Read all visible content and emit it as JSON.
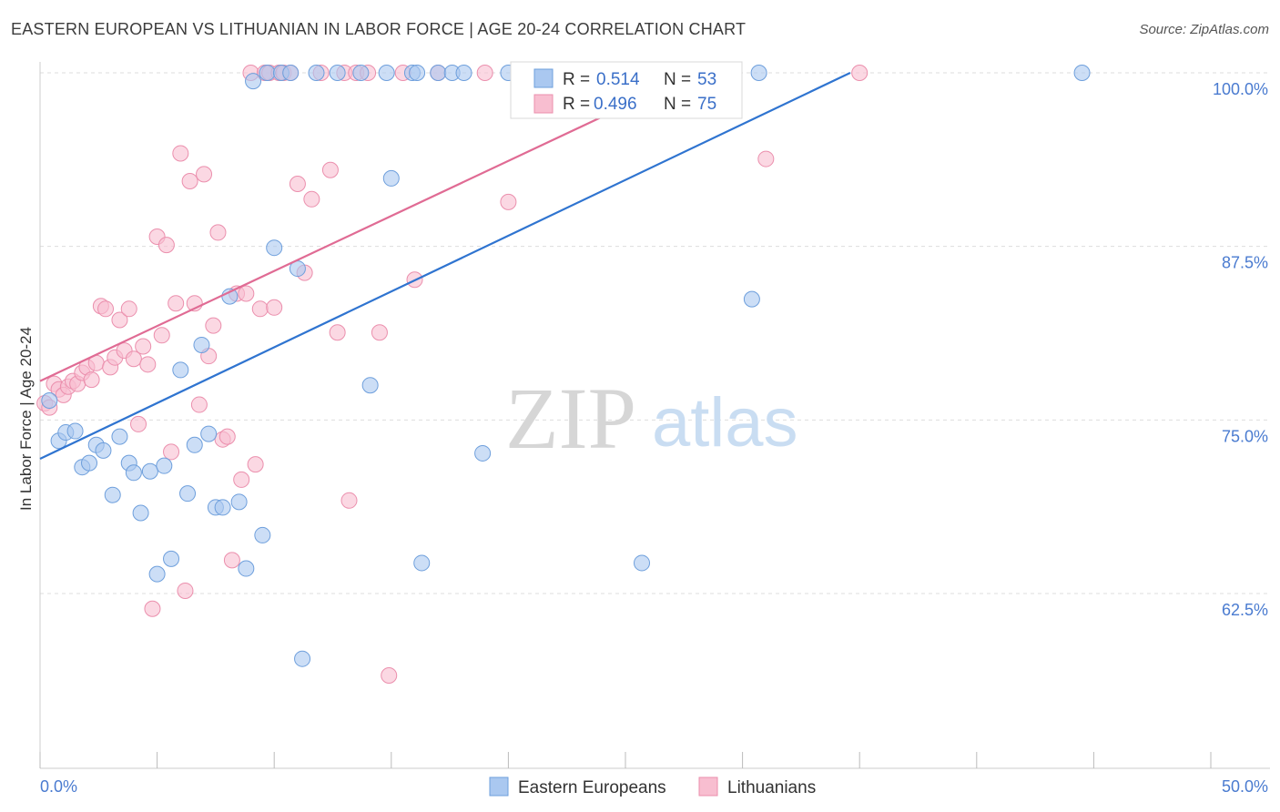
{
  "header": {
    "title": "EASTERN EUROPEAN VS LITHUANIAN IN LABOR FORCE | AGE 20-24 CORRELATION CHART",
    "source": "Source: ZipAtlas.com"
  },
  "watermark": {
    "zip": "ZIP",
    "atlas": "atlas"
  },
  "colors": {
    "blue_fill": "#aac8f0",
    "blue_stroke": "#6e9fdc",
    "blue_line": "#2f74d0",
    "pink_fill": "#f8bed0",
    "pink_stroke": "#eb8fad",
    "pink_line": "#e06b94",
    "grid": "#dddddd",
    "tick_text": "#4a7bd0"
  },
  "legend_box": {
    "rows": [
      {
        "r_label": "R =",
        "r_value": "0.514",
        "n_label": "N =",
        "n_value": "53"
      },
      {
        "r_label": "R =",
        "r_value": "0.496",
        "n_label": "N =",
        "n_value": "75"
      }
    ]
  },
  "bottom_legend": [
    "Eastern Europeans",
    "Lithuanians"
  ],
  "chart_data": {
    "type": "scatter",
    "title": "EASTERN EUROPEAN VS LITHUANIAN IN LABOR FORCE | AGE 20-24 CORRELATION CHART",
    "xlabel": "",
    "ylabel": "In Labor Force | Age 20-24",
    "xlim": [
      0,
      50
    ],
    "ylim": [
      50.5,
      102.5
    ],
    "x_tick_labels": [
      "0.0%",
      "50.0%"
    ],
    "y_ticks": [
      62.5,
      75.0,
      87.5,
      100.0
    ],
    "y_tick_labels": [
      "62.5%",
      "75.0%",
      "87.5%",
      "100.0%"
    ],
    "grid": true,
    "legend": "bottom-center",
    "series": [
      {
        "name": "Eastern Europeans",
        "R": 0.514,
        "N": 53,
        "trend": [
          [
            0,
            72.2
          ],
          [
            34.6,
            100.0
          ]
        ],
        "points": [
          [
            0.4,
            76.4
          ],
          [
            0.8,
            73.5
          ],
          [
            1.1,
            74.1
          ],
          [
            1.5,
            74.2
          ],
          [
            1.8,
            71.6
          ],
          [
            2.1,
            71.9
          ],
          [
            2.4,
            73.2
          ],
          [
            2.7,
            72.8
          ],
          [
            3.1,
            69.6
          ],
          [
            3.4,
            73.8
          ],
          [
            3.8,
            71.9
          ],
          [
            4.0,
            71.2
          ],
          [
            4.3,
            68.3
          ],
          [
            4.7,
            71.3
          ],
          [
            5.0,
            63.9
          ],
          [
            5.3,
            71.7
          ],
          [
            5.6,
            65.0
          ],
          [
            6.0,
            78.6
          ],
          [
            6.3,
            69.7
          ],
          [
            6.6,
            73.2
          ],
          [
            6.9,
            80.4
          ],
          [
            7.2,
            74.0
          ],
          [
            7.5,
            68.7
          ],
          [
            7.8,
            68.7
          ],
          [
            8.1,
            83.9
          ],
          [
            8.5,
            69.1
          ],
          [
            8.8,
            64.3
          ],
          [
            9.1,
            99.4
          ],
          [
            9.5,
            66.7
          ],
          [
            9.7,
            100.0
          ],
          [
            10.0,
            87.4
          ],
          [
            10.3,
            100.0
          ],
          [
            10.7,
            100.0
          ],
          [
            11.0,
            85.9
          ],
          [
            11.2,
            57.8
          ],
          [
            11.8,
            100.0
          ],
          [
            12.7,
            100.0
          ],
          [
            13.7,
            100.0
          ],
          [
            14.1,
            77.5
          ],
          [
            14.8,
            100.0
          ],
          [
            15.0,
            92.4
          ],
          [
            15.9,
            100.0
          ],
          [
            16.1,
            100.0
          ],
          [
            16.3,
            64.7
          ],
          [
            17.0,
            100.0
          ],
          [
            17.6,
            100.0
          ],
          [
            18.1,
            100.0
          ],
          [
            18.9,
            72.6
          ],
          [
            20.0,
            100.0
          ],
          [
            25.7,
            64.7
          ],
          [
            30.4,
            83.7
          ],
          [
            30.7,
            100.0
          ],
          [
            44.5,
            100.0
          ]
        ]
      },
      {
        "name": "Lithuanians",
        "R": 0.496,
        "N": 75,
        "trend": [
          [
            0,
            77.8
          ],
          [
            28.0,
            100.0
          ]
        ],
        "points": [
          [
            0.2,
            76.2
          ],
          [
            0.4,
            75.9
          ],
          [
            0.6,
            77.6
          ],
          [
            0.8,
            77.2
          ],
          [
            1.0,
            76.8
          ],
          [
            1.2,
            77.4
          ],
          [
            1.4,
            77.8
          ],
          [
            1.6,
            77.6
          ],
          [
            1.8,
            78.4
          ],
          [
            2.0,
            78.8
          ],
          [
            2.2,
            77.9
          ],
          [
            2.4,
            79.1
          ],
          [
            2.6,
            83.2
          ],
          [
            2.8,
            83.0
          ],
          [
            3.0,
            78.8
          ],
          [
            3.2,
            79.5
          ],
          [
            3.4,
            82.2
          ],
          [
            3.6,
            80.0
          ],
          [
            3.8,
            83.0
          ],
          [
            4.0,
            79.4
          ],
          [
            4.2,
            74.7
          ],
          [
            4.4,
            80.3
          ],
          [
            4.6,
            79.0
          ],
          [
            4.8,
            61.4
          ],
          [
            5.0,
            88.2
          ],
          [
            5.2,
            81.1
          ],
          [
            5.4,
            87.6
          ],
          [
            5.6,
            72.7
          ],
          [
            5.8,
            83.4
          ],
          [
            6.0,
            94.2
          ],
          [
            6.2,
            62.7
          ],
          [
            6.4,
            92.2
          ],
          [
            6.6,
            83.4
          ],
          [
            6.8,
            76.1
          ],
          [
            7.0,
            92.7
          ],
          [
            7.2,
            79.6
          ],
          [
            7.4,
            81.8
          ],
          [
            7.6,
            88.5
          ],
          [
            7.8,
            73.6
          ],
          [
            8.0,
            73.8
          ],
          [
            8.2,
            64.9
          ],
          [
            8.4,
            84.1
          ],
          [
            8.6,
            70.7
          ],
          [
            8.8,
            84.1
          ],
          [
            9.0,
            100.0
          ],
          [
            9.2,
            71.8
          ],
          [
            9.4,
            83.0
          ],
          [
            9.6,
            100.0
          ],
          [
            9.8,
            100.0
          ],
          [
            10.0,
            83.1
          ],
          [
            10.2,
            100.0
          ],
          [
            10.4,
            100.0
          ],
          [
            10.7,
            100.0
          ],
          [
            11.0,
            92.0
          ],
          [
            11.3,
            85.6
          ],
          [
            11.6,
            90.9
          ],
          [
            12.0,
            100.0
          ],
          [
            12.4,
            93.0
          ],
          [
            12.7,
            81.3
          ],
          [
            13.0,
            100.0
          ],
          [
            13.2,
            69.2
          ],
          [
            13.5,
            100.0
          ],
          [
            14.0,
            100.0
          ],
          [
            14.5,
            81.3
          ],
          [
            14.9,
            56.6
          ],
          [
            15.5,
            100.0
          ],
          [
            16.0,
            85.1
          ],
          [
            17.0,
            100.0
          ],
          [
            19.0,
            100.0
          ],
          [
            20.0,
            90.7
          ],
          [
            21.5,
            100.0
          ],
          [
            23.0,
            100.0
          ],
          [
            28.8,
            100.0
          ],
          [
            31.0,
            93.8
          ],
          [
            35.0,
            100.0
          ]
        ]
      }
    ]
  }
}
